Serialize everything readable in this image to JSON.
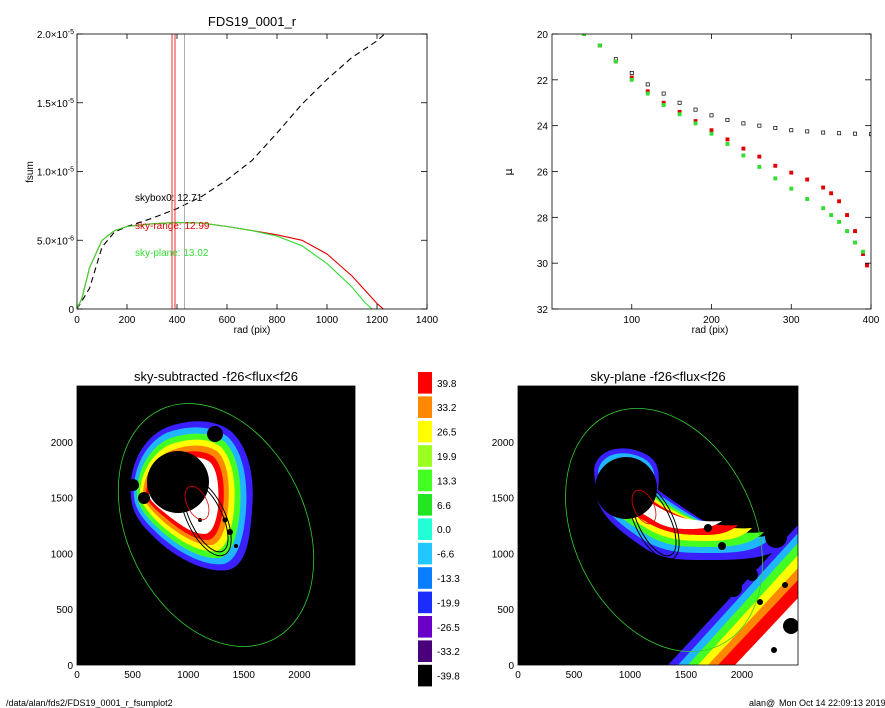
{
  "colors": {
    "black": "#000000",
    "red": "#e00000",
    "green": "#33dd33",
    "gray": "#9a9a9a",
    "white": "#ffffff",
    "colorbar": [
      "#000000",
      "#4a007a",
      "#6a00c8",
      "#1a2cff",
      "#0a7dff",
      "#22c7ff",
      "#22ffd6",
      "#22e622",
      "#44ff22",
      "#9cff22",
      "#ffff00",
      "#ff8800",
      "#ff0000"
    ]
  },
  "footer": {
    "path": "/data/alan/fds2/FDS19_0001_r_fsumplot2",
    "user": "alan@",
    "timestamp": "Mon Oct 14 22:09:13 2019"
  },
  "chart_data": [
    {
      "type": "line",
      "title": "FDS19_0001_r",
      "xlabel": "rad (pix)",
      "ylabel": "fsum",
      "xlim": [
        0,
        1400
      ],
      "ylim": [
        0,
        2e-05
      ],
      "xticks": [
        "0",
        "200",
        "400",
        "600",
        "800",
        "1000",
        "1200",
        "1400"
      ],
      "yticks": [
        {
          "value": 0,
          "label": "0"
        },
        {
          "value": 5e-06,
          "label": "5.0×10",
          "exp": "-6"
        },
        {
          "value": 1e-05,
          "label": "1.0×10",
          "exp": "-5"
        },
        {
          "value": 1.5e-05,
          "label": "1.5×10",
          "exp": "-5"
        },
        {
          "value": 2e-05,
          "label": "2.0×10",
          "exp": "-5"
        }
      ],
      "annotations": [
        {
          "text": "skybox0: 12.71",
          "color": "black"
        },
        {
          "text": "sky-range: 12.99",
          "color": "red"
        },
        {
          "text": "sky-plane: 13.02",
          "color": "green"
        }
      ],
      "vlines": [
        {
          "x": 380,
          "color": "red"
        },
        {
          "x": 392,
          "color": "red"
        },
        {
          "x": 430,
          "color": "gray"
        }
      ],
      "series": [
        {
          "color": "black",
          "style": "dashed",
          "x": [
            0,
            50,
            100,
            150,
            200,
            300,
            400,
            500,
            600,
            700,
            800,
            900,
            1000,
            1100,
            1200,
            1230
          ],
          "values": [
            0,
            1.5e-06,
            4.5e-06,
            5.6e-06,
            6e-06,
            6.6e-06,
            7.3e-06,
            8.2e-06,
            9.4e-06,
            1.08e-05,
            1.28e-05,
            1.49e-05,
            1.67e-05,
            1.83e-05,
            1.95e-05,
            2e-05
          ]
        },
        {
          "color": "red",
          "style": "solid",
          "x": [
            0,
            20,
            50,
            100,
            150,
            200,
            300,
            400,
            500,
            600,
            700,
            800,
            900,
            1000,
            1100,
            1150,
            1200,
            1225
          ],
          "values": [
            0,
            8e-07,
            3e-06,
            5e-06,
            5.7e-06,
            6e-06,
            6.2e-06,
            6.3e-06,
            6.25e-06,
            6e-06,
            5.7e-06,
            5.4e-06,
            5e-06,
            4e-06,
            2.4e-06,
            1.4e-06,
            4e-07,
            0
          ]
        },
        {
          "color": "green",
          "style": "solid",
          "x": [
            0,
            20,
            50,
            100,
            150,
            200,
            300,
            400,
            500,
            600,
            700,
            800,
            900,
            1000,
            1100,
            1150,
            1180
          ],
          "values": [
            0,
            8e-07,
            3e-06,
            5e-06,
            5.7e-06,
            6e-06,
            6.2e-06,
            6.3e-06,
            6.25e-06,
            6e-06,
            5.7e-06,
            5.3e-06,
            4.6e-06,
            3.3e-06,
            1.6e-06,
            5e-07,
            0
          ]
        }
      ]
    },
    {
      "type": "scatter",
      "xlabel": "rad (pix)",
      "ylabel": "μ",
      "xlim": [
        0,
        400
      ],
      "ylim": [
        32,
        20
      ],
      "y_inverted": true,
      "xticks": [
        "100",
        "200",
        "300",
        "400"
      ],
      "yticks": [
        "20",
        "22",
        "24",
        "26",
        "28",
        "30",
        "32"
      ],
      "series": [
        {
          "color": "black",
          "marker": "open-square",
          "x": [
            40,
            60,
            80,
            100,
            120,
            140,
            160,
            180,
            200,
            220,
            240,
            260,
            280,
            300,
            320,
            340,
            360,
            380,
            400
          ],
          "values": [
            20.0,
            20.5,
            21.1,
            21.7,
            22.2,
            22.6,
            23.0,
            23.3,
            23.55,
            23.75,
            23.9,
            24.0,
            24.1,
            24.2,
            24.25,
            24.3,
            24.33,
            24.35,
            24.37
          ]
        },
        {
          "color": "red",
          "marker": "filled-square",
          "x": [
            40,
            60,
            80,
            100,
            120,
            140,
            160,
            180,
            200,
            220,
            240,
            260,
            280,
            300,
            320,
            340,
            350,
            360,
            370,
            380,
            390,
            395
          ],
          "values": [
            20.0,
            20.5,
            21.2,
            21.9,
            22.5,
            23.0,
            23.4,
            23.8,
            24.2,
            24.6,
            25.0,
            25.35,
            25.75,
            26.05,
            26.35,
            26.7,
            26.95,
            27.3,
            27.9,
            28.6,
            29.6,
            30.1
          ]
        },
        {
          "color": "green",
          "marker": "filled-square",
          "x": [
            40,
            60,
            80,
            100,
            120,
            140,
            160,
            180,
            200,
            220,
            240,
            260,
            280,
            300,
            320,
            340,
            350,
            360,
            370,
            380,
            390
          ],
          "values": [
            20.0,
            20.5,
            21.2,
            22.0,
            22.6,
            23.1,
            23.5,
            23.9,
            24.35,
            24.8,
            25.3,
            25.8,
            26.3,
            26.75,
            27.2,
            27.6,
            27.9,
            28.2,
            28.6,
            29.1,
            29.5
          ]
        }
      ]
    },
    {
      "type": "heatmap",
      "title": "sky-subtracted -f26<flux<f26",
      "xlim": [
        0,
        2500
      ],
      "ylim": [
        0,
        2500
      ],
      "xticks": [
        "0",
        "500",
        "1000",
        "1500",
        "2000"
      ],
      "yticks": [
        "0",
        "500",
        "1000",
        "1500",
        "2000"
      ]
    },
    {
      "type": "heatmap",
      "title": "sky-plane -f26<flux<f26",
      "xlim": [
        0,
        2500
      ],
      "ylim": [
        0,
        2500
      ],
      "xticks": [
        "0",
        "500",
        "1000",
        "1500",
        "2000"
      ],
      "yticks": [
        "0",
        "500",
        "1000",
        "1500",
        "2000"
      ]
    },
    {
      "type": "colorbar",
      "labels": [
        "39.8",
        "33.2",
        "26.5",
        "19.9",
        "13.3",
        "6.6",
        "0.0",
        "-6.6",
        "-13.3",
        "-19.9",
        "-26.5",
        "-33.2",
        "-39.8"
      ]
    }
  ]
}
